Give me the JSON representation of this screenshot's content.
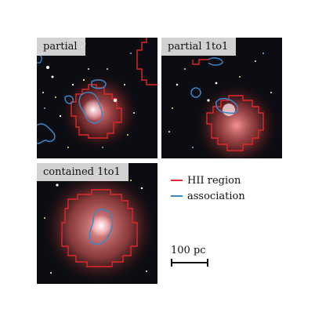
{
  "panels": [
    {
      "label": "partial"
    },
    {
      "label": "partial 1to1"
    },
    {
      "label": "contained 1to1"
    }
  ],
  "legend": {
    "items": [
      {
        "label": "HII region",
        "color": "#e02828"
      },
      {
        "label": "association",
        "color": "#3a86c8"
      }
    ]
  },
  "scalebar": {
    "label": "100 pc"
  }
}
